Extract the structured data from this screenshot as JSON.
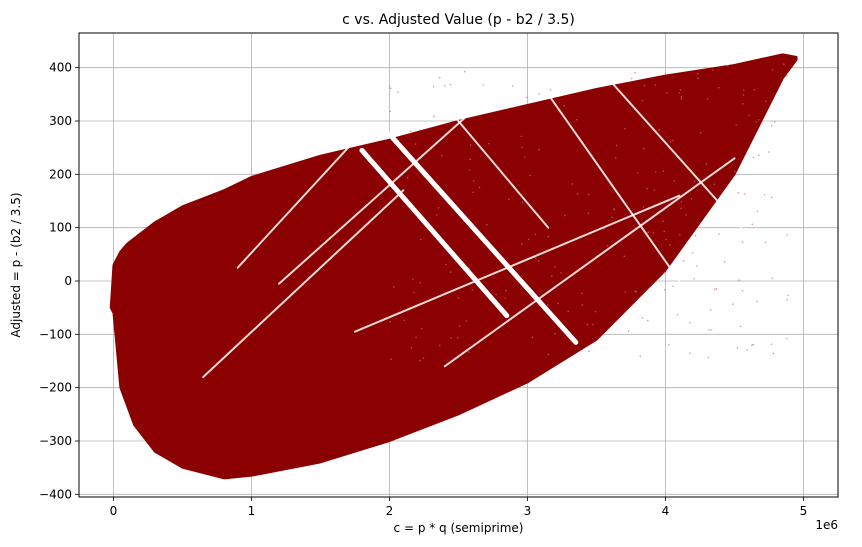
{
  "chart_data": {
    "type": "scatter",
    "title": "c vs. Adjusted Value (p - b2 / 3.5)",
    "xlabel": "c = p * q (semiprime)",
    "ylabel": "Adjusted = p - (b2 / 3.5)",
    "x_offset_text": "1e6",
    "xlim": [
      -0.25,
      5.25
    ],
    "ylim": [
      -405,
      465
    ],
    "x_ticks": [
      0,
      1,
      2,
      3,
      4,
      5
    ],
    "y_ticks": [
      -400,
      -300,
      -200,
      -100,
      0,
      100,
      200,
      300,
      400
    ],
    "grid": true,
    "marker_color": "#8b0000",
    "series": [
      {
        "upper_envelope": [
          {
            "x": 0.0,
            "y": 30
          },
          {
            "x": 0.05,
            "y": 55
          },
          {
            "x": 0.1,
            "y": 70
          },
          {
            "x": 0.3,
            "y": 110
          },
          {
            "x": 0.5,
            "y": 140
          },
          {
            "x": 0.8,
            "y": 170
          },
          {
            "x": 1.0,
            "y": 195
          },
          {
            "x": 1.5,
            "y": 235
          },
          {
            "x": 2.0,
            "y": 265
          },
          {
            "x": 2.5,
            "y": 300
          },
          {
            "x": 3.0,
            "y": 330
          },
          {
            "x": 3.5,
            "y": 360
          },
          {
            "x": 4.0,
            "y": 385
          },
          {
            "x": 4.5,
            "y": 405
          },
          {
            "x": 4.85,
            "y": 425
          },
          {
            "x": 4.95,
            "y": 420
          }
        ],
        "lower_envelope": [
          {
            "x": 0.0,
            "y": -60
          },
          {
            "x": 0.05,
            "y": -200
          },
          {
            "x": 0.15,
            "y": -270
          },
          {
            "x": 0.3,
            "y": -320
          },
          {
            "x": 0.5,
            "y": -350
          },
          {
            "x": 0.8,
            "y": -370
          },
          {
            "x": 1.0,
            "y": -365
          },
          {
            "x": 1.5,
            "y": -340
          },
          {
            "x": 2.0,
            "y": -300
          },
          {
            "x": 2.5,
            "y": -250
          },
          {
            "x": 3.0,
            "y": -190
          },
          {
            "x": 3.5,
            "y": -110
          },
          {
            "x": 4.0,
            "y": 20
          },
          {
            "x": 4.5,
            "y": 200
          },
          {
            "x": 4.85,
            "y": 380
          },
          {
            "x": 4.95,
            "y": 415
          }
        ],
        "gap_lines": [
          {
            "x1": 1.8,
            "y1": 245,
            "x2": 2.85,
            "y2": -65
          },
          {
            "x1": 2.0,
            "y1": 275,
            "x2": 3.35,
            "y2": -115
          },
          {
            "x1": 2.45,
            "y1": 315,
            "x2": 3.15,
            "y2": 100
          },
          {
            "x1": 0.9,
            "y1": 25,
            "x2": 1.7,
            "y2": 250
          },
          {
            "x1": 1.2,
            "y1": -5,
            "x2": 2.65,
            "y2": 330
          },
          {
            "x1": 1.75,
            "y1": -95,
            "x2": 4.1,
            "y2": 160
          },
          {
            "x1": 2.4,
            "y1": -160,
            "x2": 4.5,
            "y2": 230
          },
          {
            "x1": 3.15,
            "y1": 350,
            "x2": 4.1,
            "y2": 0
          },
          {
            "x1": 3.6,
            "y1": 375,
            "x2": 4.55,
            "y2": 100
          },
          {
            "x1": 0.65,
            "y1": -180,
            "x2": 2.1,
            "y2": 170
          }
        ]
      }
    ]
  }
}
